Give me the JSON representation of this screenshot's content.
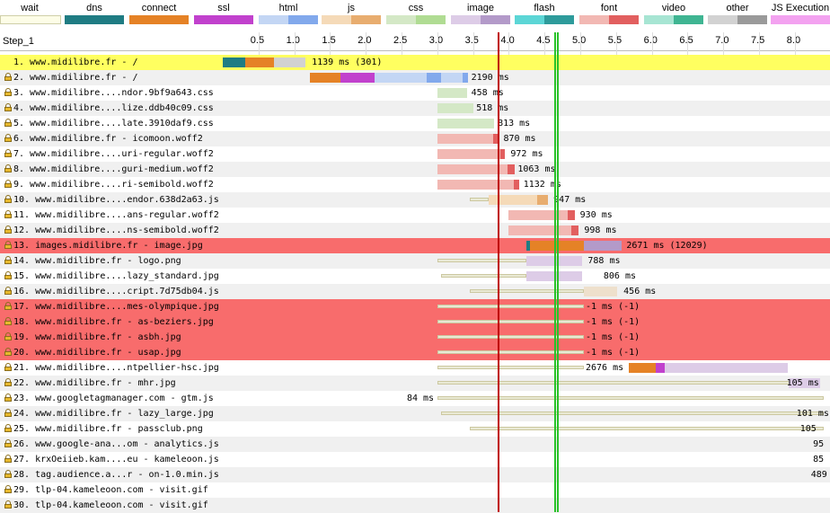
{
  "legend": [
    {
      "label": "wait",
      "colors": [
        "#fdfde7"
      ]
    },
    {
      "label": "dns",
      "colors": [
        "#1f7c83"
      ]
    },
    {
      "label": "connect",
      "colors": [
        "#e58226"
      ]
    },
    {
      "label": "ssl",
      "colors": [
        "#c141cd"
      ]
    },
    {
      "label": "html",
      "colors": [
        "#c3d6f4",
        "#82a9ec"
      ]
    },
    {
      "label": "js",
      "colors": [
        "#f5dab8",
        "#e8ad6f"
      ]
    },
    {
      "label": "css",
      "colors": [
        "#d4e8c6",
        "#b0dc93"
      ]
    },
    {
      "label": "image",
      "colors": [
        "#ddcce7",
        "#b39ac9"
      ]
    },
    {
      "label": "flash",
      "colors": [
        "#5cd6d6",
        "#2e9b9b"
      ]
    },
    {
      "label": "font",
      "colors": [
        "#f2b8b3",
        "#e25f5f"
      ]
    },
    {
      "label": "video",
      "colors": [
        "#a7e5d3",
        "#3fb592"
      ]
    },
    {
      "label": "other",
      "colors": [
        "#d2d2d2",
        "#9a9a9a"
      ]
    },
    {
      "label": "JS Execution",
      "colors": [
        "#f3a2f0"
      ]
    }
  ],
  "step_label": "Step_1",
  "ticks": [
    "0.5",
    "1.0",
    "1.5",
    "2.0",
    "2.5",
    "3.0",
    "3.5",
    "4.0",
    "4.5",
    "5.0",
    "5.5",
    "6.0",
    "6.5",
    "7.0",
    "7.5",
    "8.0"
  ],
  "rows": [
    {
      "label": "1. www.midilibre.fr - /",
      "lock": false,
      "value": "1139 ms (301)",
      "highlight": "yellow"
    },
    {
      "label": "2. www.midilibre.fr - /",
      "lock": true,
      "value": "2190 ms"
    },
    {
      "label": "3. www.midilibre....ndor.9bf9a643.css",
      "lock": true,
      "value": "458 ms"
    },
    {
      "label": "4. www.midilibre....lize.ddb40c09.css",
      "lock": true,
      "value": "518 ms"
    },
    {
      "label": "5. www.midilibre....late.3910daf9.css",
      "lock": true,
      "value": "813 ms"
    },
    {
      "label": "6. www.midilibre.fr - icomoon.woff2",
      "lock": true,
      "value": "870 ms"
    },
    {
      "label": "7. www.midilibre....uri-regular.woff2",
      "lock": true,
      "value": "972 ms"
    },
    {
      "label": "8. www.midilibre....guri-medium.woff2",
      "lock": true,
      "value": "1063 ms"
    },
    {
      "label": "9. www.midilibre....ri-semibold.woff2",
      "lock": true,
      "value": "1132 ms"
    },
    {
      "label": "10. www.midilibre....endor.638d2a63.js",
      "lock": true,
      "value": "947 ms"
    },
    {
      "label": "11. www.midilibre....ans-regular.woff2",
      "lock": true,
      "value": "930 ms"
    },
    {
      "label": "12. www.midilibre....ns-semibold.woff2",
      "lock": true,
      "value": "998 ms"
    },
    {
      "label": "13. images.midilibre.fr - image.jpg",
      "lock": true,
      "value": "2671 ms (12029)",
      "highlight": "red"
    },
    {
      "label": "14. www.midilibre.fr - logo.png",
      "lock": true,
      "value": "788 ms"
    },
    {
      "label": "15. www.midilibre....lazy_standard.jpg",
      "lock": true,
      "value": "806 ms"
    },
    {
      "label": "16. www.midilibre....cript.7d75db04.js",
      "lock": true,
      "value": "456 ms"
    },
    {
      "label": "17. www.midilibre....mes-olympique.jpg",
      "lock": true,
      "value": "-1 ms (-1)",
      "highlight": "red"
    },
    {
      "label": "18. www.midilibre.fr - as-beziers.jpg",
      "lock": true,
      "value": "-1 ms (-1)",
      "highlight": "red"
    },
    {
      "label": "19. www.midilibre.fr - asbh.jpg",
      "lock": true,
      "value": "-1 ms (-1)",
      "highlight": "red"
    },
    {
      "label": "20. www.midilibre.fr - usap.jpg",
      "lock": true,
      "value": "-1 ms (-1)",
      "highlight": "red"
    },
    {
      "label": "21. www.midilibre....ntpellier-hsc.jpg",
      "lock": true,
      "value": "2676 ms"
    },
    {
      "label": "22. www.midilibre.fr - mhr.jpg",
      "lock": true,
      "value": "105 ms"
    },
    {
      "label": "23. www.googletagmanager.com - gtm.js",
      "lock": true,
      "value": "84 ms"
    },
    {
      "label": "24. www.midilibre.fr - lazy_large.jpg",
      "lock": true,
      "value": "101 ms"
    },
    {
      "label": "25. www.midilibre.fr - passclub.png",
      "lock": true,
      "value": "105"
    },
    {
      "label": "26. www.google-ana...om - analytics.js",
      "lock": true,
      "value": "95"
    },
    {
      "label": "27. krxOeiieb.kam....eu - kameleoon.js",
      "lock": true,
      "value": "85"
    },
    {
      "label": "28. tag.audience.a...r - on-1.0.min.js",
      "lock": true,
      "value": "489"
    },
    {
      "label": "29. tlp-04.kameleoon.com - visit.gif",
      "lock": true,
      "value": ""
    },
    {
      "label": "30. tlp-04.kameleoon.com - visit.gif",
      "lock": true,
      "value": ""
    }
  ],
  "colors": {
    "row_alt": "#f0f0f0",
    "highlight_yellow": "#ffff60",
    "highlight_red": "#f86c6c",
    "dom_marker": "#28c228",
    "onload_marker": "#c00000"
  }
}
